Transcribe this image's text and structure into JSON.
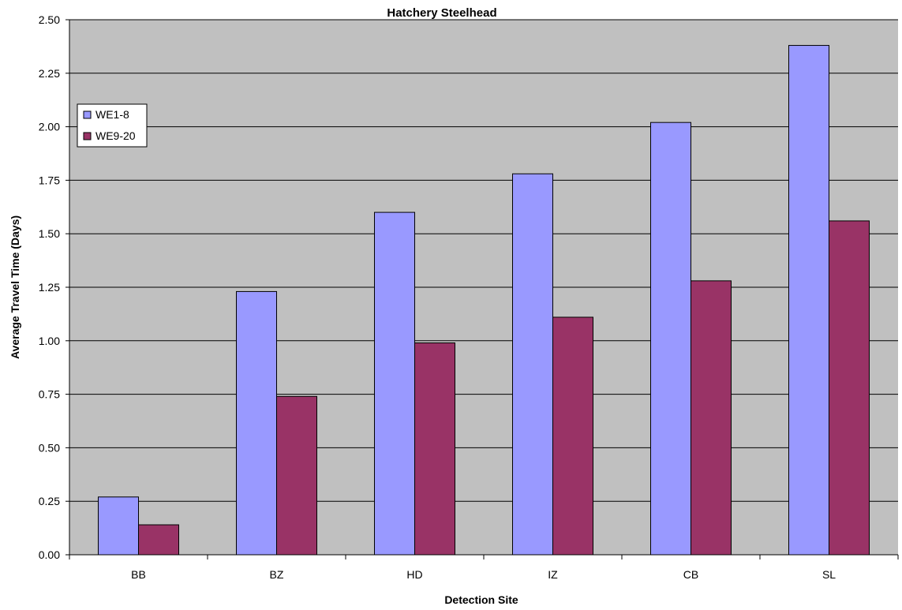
{
  "chart_data": {
    "type": "bar",
    "title": "Hatchery Steelhead",
    "xlabel": "Detection Site",
    "ylabel": "Average Travel Time (Days)",
    "categories": [
      "BB",
      "BZ",
      "HD",
      "IZ",
      "CB",
      "SL"
    ],
    "series": [
      {
        "name": "WE1-8",
        "color": "#9999ff",
        "values": [
          0.27,
          1.23,
          1.6,
          1.78,
          2.02,
          2.38
        ]
      },
      {
        "name": "WE9-20",
        "color": "#993366",
        "values": [
          0.14,
          0.74,
          0.99,
          1.11,
          1.28,
          1.56
        ]
      }
    ],
    "ylim": [
      0,
      2.5
    ],
    "yticks": [
      "0.00",
      "0.25",
      "0.50",
      "0.75",
      "1.00",
      "1.25",
      "1.50",
      "1.75",
      "2.00",
      "2.25",
      "2.50"
    ],
    "plot_background": "#c0c0c0",
    "grid": true,
    "legend_position": "left"
  }
}
